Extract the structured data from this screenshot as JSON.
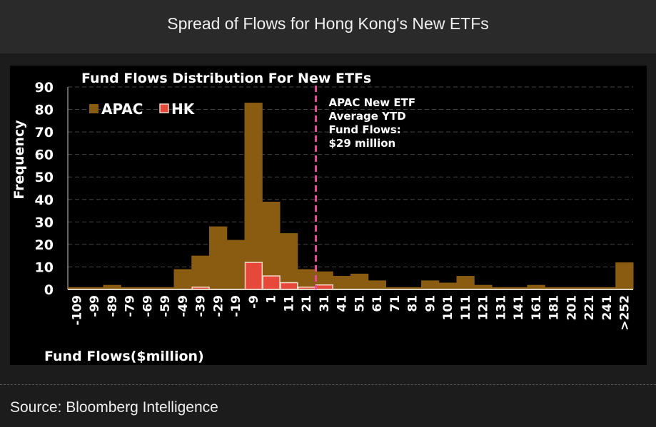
{
  "header": {
    "title": "Spread of Flows for Hong Kong's New ETFs"
  },
  "footer": {
    "source": "Source: Bloomberg Intelligence"
  },
  "chart_data": {
    "type": "bar",
    "title": "Fund Flows Distribution For New ETFs",
    "xlabel": "Fund Flows($million)",
    "ylabel": "Frequency",
    "ylim": [
      0,
      90
    ],
    "yticks": [
      0,
      10,
      20,
      30,
      40,
      50,
      60,
      70,
      80,
      90
    ],
    "grid": true,
    "legend_position": "top-left",
    "categories": [
      "-109",
      "-99",
      "-89",
      "-79",
      "-69",
      "-59",
      "-49",
      "-39",
      "-29",
      "-19",
      "-9",
      "1",
      "11",
      "21",
      "31",
      "41",
      "51",
      "61",
      "71",
      "81",
      "91",
      "101",
      "111",
      "121",
      "131",
      "141",
      "161",
      "181",
      "201",
      "221",
      "241",
      ">252"
    ],
    "series": [
      {
        "name": "APAC",
        "color": "#8a5c12",
        "values": [
          1,
          1,
          2,
          1,
          1,
          1,
          9,
          15,
          28,
          22,
          83,
          39,
          25,
          9,
          8,
          6,
          7,
          4,
          1,
          1,
          4,
          3,
          6,
          2,
          1,
          1,
          2,
          1,
          1,
          1,
          1,
          12
        ]
      },
      {
        "name": "HK",
        "color": "#e8483a",
        "values": [
          0,
          0,
          0,
          0,
          0,
          0,
          0,
          1,
          0,
          0,
          12,
          6,
          3,
          1,
          2,
          0,
          0,
          0,
          0,
          0,
          0,
          0,
          0,
          0,
          0,
          0,
          0,
          0,
          0,
          0,
          0,
          0
        ]
      }
    ],
    "reference_line": {
      "value": 29,
      "color": "#e8489a",
      "label": [
        "APAC New ETF",
        "Average YTD",
        "Fund Flows:",
        "$29 million"
      ]
    }
  }
}
